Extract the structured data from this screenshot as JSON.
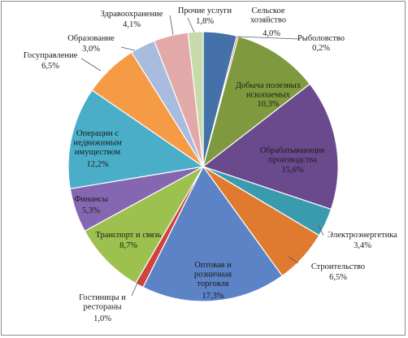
{
  "chart_data": {
    "type": "pie",
    "title": "",
    "slices": [
      {
        "label": "Сельское хозяйство",
        "value": 4.0,
        "display": "4,0%",
        "color": "#4472a8"
      },
      {
        "label": "Рыболовство",
        "value": 0.2,
        "display": "0,2%",
        "color": "#c0504d"
      },
      {
        "label": "Добыча полезных ископаемых",
        "value": 10.3,
        "display": "10,3%",
        "color": "#7f9a3e"
      },
      {
        "label": "Обрабатывающие производства",
        "value": 15.6,
        "display": "15,6%",
        "color": "#6a4a8c"
      },
      {
        "label": "Электроэнергетика",
        "value": 3.4,
        "display": "3,4%",
        "color": "#3a9bae"
      },
      {
        "label": "Строительство",
        "value": 6.5,
        "display": "6,5%",
        "color": "#e07a2e"
      },
      {
        "label": "Оптовая и розничная торговля",
        "value": 17.3,
        "display": "17,3%",
        "color": "#5b83c6"
      },
      {
        "label": "Гостиницы и рестораны",
        "value": 1.0,
        "display": "1,0%",
        "color": "#d0433c"
      },
      {
        "label": "Транспорт и связь",
        "value": 8.7,
        "display": "8,7%",
        "color": "#9dc14f"
      },
      {
        "label": "Финансы",
        "value": 5.3,
        "display": "5,3%",
        "color": "#8567b1"
      },
      {
        "label": "Операции с недвижимым имуществом",
        "value": 12.2,
        "display": "12,2%",
        "color": "#4aaec9"
      },
      {
        "label": "Госуправление",
        "value": 6.5,
        "display": "6,5%",
        "color": "#f59a45"
      },
      {
        "label": "Образование",
        "value": 3.0,
        "display": "3,0%",
        "color": "#a9bcdf"
      },
      {
        "label": "Здравоохранение",
        "value": 4.1,
        "display": "4,1%",
        "color": "#e3a9a8"
      },
      {
        "label": "Прочие услуги",
        "value": 1.8,
        "display": "1,8%",
        "color": "#c7dbaa"
      }
    ],
    "legend": "none",
    "start_angle": "12 o'clock, clockwise"
  }
}
